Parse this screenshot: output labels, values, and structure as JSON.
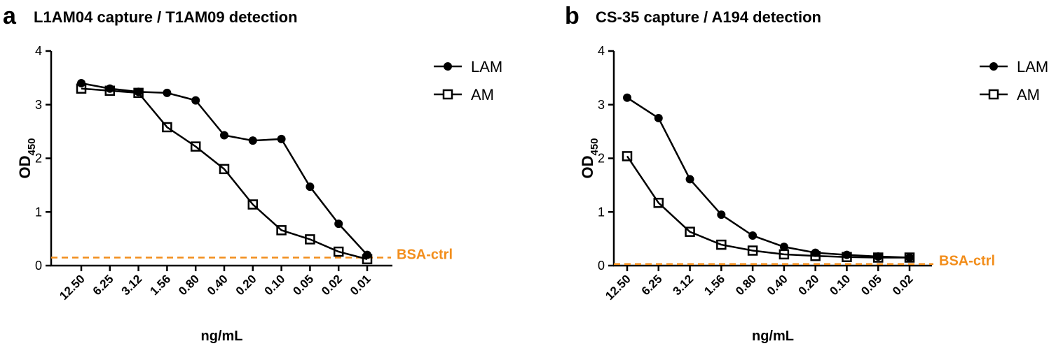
{
  "colors": {
    "ink": "#000000",
    "reference": "#f28e1c",
    "marker_open_fill": "#ffffff"
  },
  "chart_data": [
    {
      "panel": "a",
      "type": "line",
      "title": "L1AM04 capture / T1AM09 detection",
      "xlabel": "ng/mL",
      "ylabel": "OD",
      "ylabel_sub": "450",
      "ylim": [
        0,
        4
      ],
      "yticks": [
        "0",
        "1",
        "2",
        "3",
        "4"
      ],
      "categories": [
        "12.50",
        "6.25",
        "3.12",
        "1.56",
        "0.80",
        "0.40",
        "0.20",
        "0.10",
        "0.05",
        "0.02",
        "0.01"
      ],
      "series": [
        {
          "name": "LAM",
          "marker": "filled-circle",
          "values": [
            3.4,
            3.3,
            3.24,
            3.22,
            3.08,
            2.43,
            2.33,
            2.36,
            1.47,
            0.78,
            0.2
          ]
        },
        {
          "name": "AM",
          "marker": "open-square",
          "values": [
            3.3,
            3.26,
            3.22,
            2.58,
            2.22,
            1.8,
            1.14,
            0.66,
            0.49,
            0.26,
            0.12
          ]
        }
      ],
      "reference": {
        "label": "BSA-ctrl",
        "value": 0.15,
        "style": "dashed"
      },
      "legend_position": "top-right"
    },
    {
      "panel": "b",
      "type": "line",
      "title": "CS-35 capture / A194 detection",
      "xlabel": "ng/mL",
      "ylabel": "OD",
      "ylabel_sub": "450",
      "ylim": [
        0,
        4
      ],
      "yticks": [
        "0",
        "1",
        "2",
        "3",
        "4"
      ],
      "categories": [
        "12.50",
        "6.25",
        "3.12",
        "1.56",
        "0.80",
        "0.40",
        "0.20",
        "0.10",
        "0.05",
        "0.02"
      ],
      "series": [
        {
          "name": "LAM",
          "marker": "filled-circle",
          "values": [
            3.13,
            2.75,
            1.61,
            0.95,
            0.56,
            0.35,
            0.24,
            0.2,
            0.17,
            0.15
          ]
        },
        {
          "name": "AM",
          "marker": "open-square",
          "values": [
            2.04,
            1.17,
            0.63,
            0.39,
            0.28,
            0.21,
            0.18,
            0.16,
            0.15,
            0.15
          ]
        }
      ],
      "reference": {
        "label": "BSA-ctrl",
        "value": 0.03,
        "style": "dashed"
      },
      "legend_position": "top-right"
    }
  ]
}
